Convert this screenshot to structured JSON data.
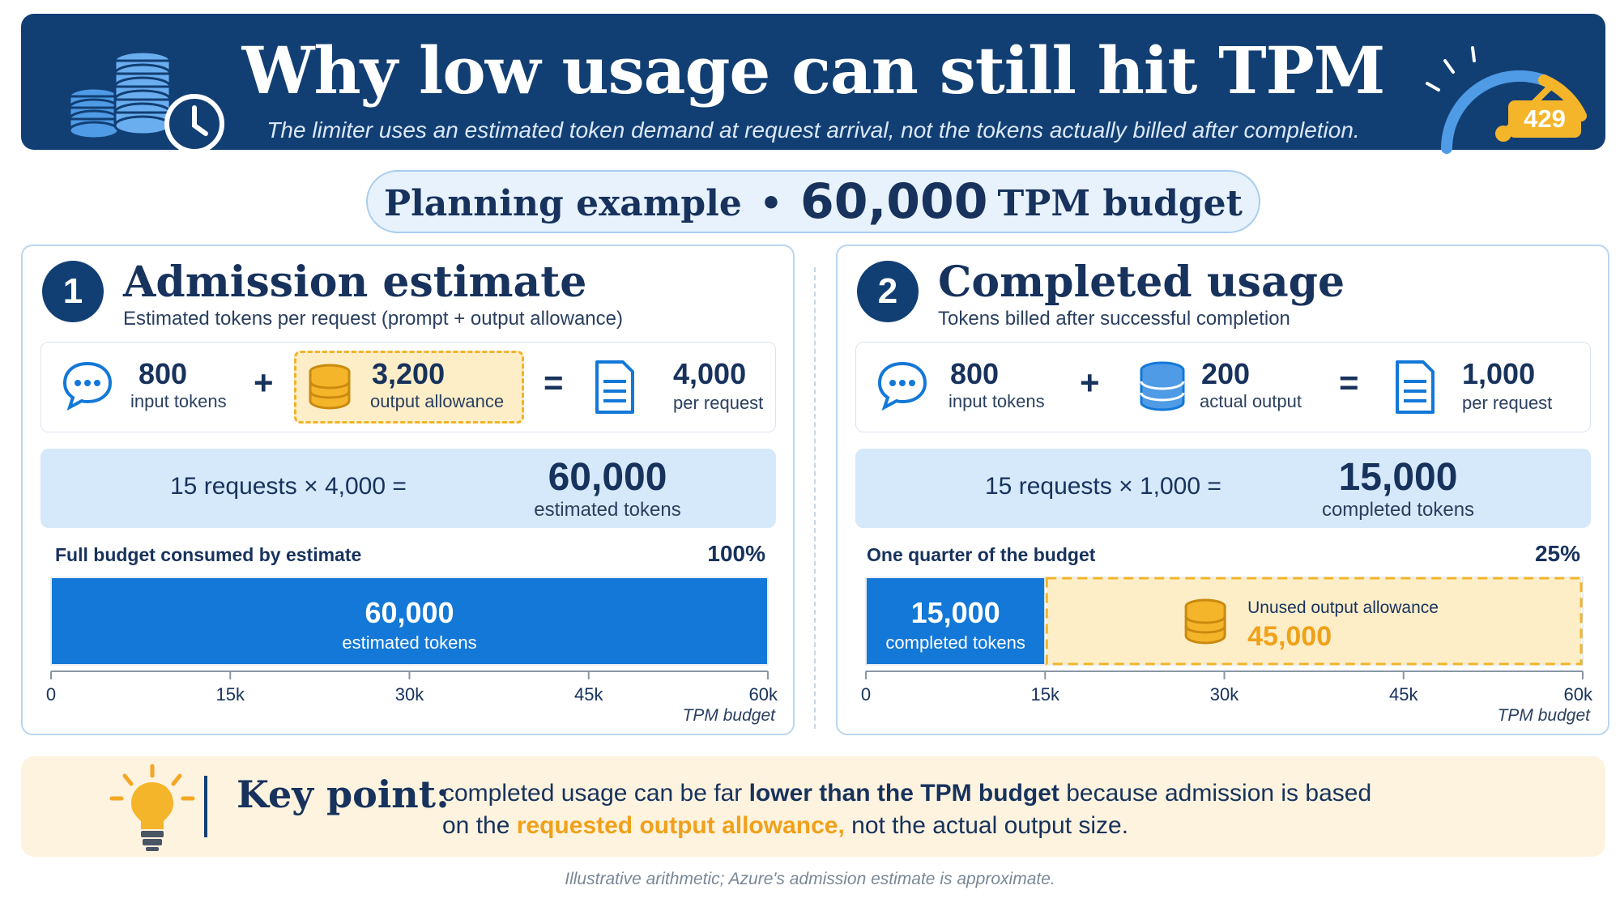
{
  "header": {
    "title": "Why low usage can still hit TPM",
    "subtitle": "The limiter uses an estimated token demand at request arrival, not the tokens actually billed after completion.",
    "badge": "429",
    "left_icon": "stacked-coins-clock-icon",
    "right_icon": "speedometer-gauge-icon"
  },
  "planning": {
    "label": "Planning example",
    "separator": "•",
    "budget_value": "60,000",
    "budget_unit": "TPM budget"
  },
  "panel1": {
    "step": "1",
    "title": "Admission estimate",
    "subtitle": "Estimated tokens per request (prompt + output allowance)",
    "input": {
      "value": "800",
      "label": "input tokens"
    },
    "plus": "+",
    "output": {
      "value": "3,200",
      "label": "output allowance"
    },
    "equals": "=",
    "result": {
      "value": "4,000",
      "label": "per request"
    },
    "mult_text": "15 requests × 4,000 =",
    "mult_result": {
      "value": "60,000",
      "label": "estimated tokens"
    },
    "bar_title": "Full budget consumed by estimate",
    "bar_pct": "100%",
    "tpm_label": "TPM budget"
  },
  "panel2": {
    "step": "2",
    "title": "Completed usage",
    "subtitle": "Tokens billed after successful completion",
    "input": {
      "value": "800",
      "label": "input tokens"
    },
    "plus": "+",
    "output": {
      "value": "200",
      "label": "actual output"
    },
    "equals": "=",
    "result": {
      "value": "1,000",
      "label": "per request"
    },
    "mult_text": "15 requests × 1,000 =",
    "mult_result": {
      "value": "15,000",
      "label": "completed tokens"
    },
    "bar_title": "One quarter of the budget",
    "bar_pct": "25%",
    "tpm_label": "TPM budget"
  },
  "chart_data": [
    {
      "type": "bar",
      "orientation": "horizontal-stacked",
      "xlim": [
        0,
        60000
      ],
      "ticks": [
        {
          "value": 0,
          "label": "0"
        },
        {
          "value": 15000,
          "label": "15k"
        },
        {
          "value": 30000,
          "label": "30k"
        },
        {
          "value": 45000,
          "label": "45k"
        },
        {
          "value": 60000,
          "label": "60k"
        }
      ],
      "segments": [
        {
          "value": 60000,
          "value_label": "60,000",
          "label": "estimated tokens",
          "color": "#1378d8",
          "style": "solid"
        }
      ]
    },
    {
      "type": "bar",
      "orientation": "horizontal-stacked",
      "xlim": [
        0,
        60000
      ],
      "ticks": [
        {
          "value": 0,
          "label": "0"
        },
        {
          "value": 15000,
          "label": "15k"
        },
        {
          "value": 30000,
          "label": "30k"
        },
        {
          "value": 45000,
          "label": "45k"
        },
        {
          "value": 60000,
          "label": "60k"
        }
      ],
      "segments": [
        {
          "value": 15000,
          "value_label": "15,000",
          "label": "completed tokens",
          "color": "#1378d8",
          "style": "solid"
        },
        {
          "value": 45000,
          "value_label": "45,000",
          "label": "Unused output allowance",
          "color": "#fdeec8",
          "border": "#f0b429",
          "style": "dashed"
        }
      ]
    }
  ],
  "keypoint": {
    "title": "Key point:",
    "line1_a": "completed usage can be far ",
    "line1_b": "lower than the TPM budget",
    "line1_c": " because admission is based",
    "line2_a": "on the ",
    "line2_b": "requested output allowance,",
    "line2_c": " not the actual output size."
  },
  "footnote": "Illustrative arithmetic; Azure's admission estimate is approximate.",
  "colors": {
    "navy": "#123f73",
    "blue": "#1378d8",
    "amber": "#f0b429",
    "light_blue": "#d6e9fa",
    "cream": "#fdf3df"
  }
}
